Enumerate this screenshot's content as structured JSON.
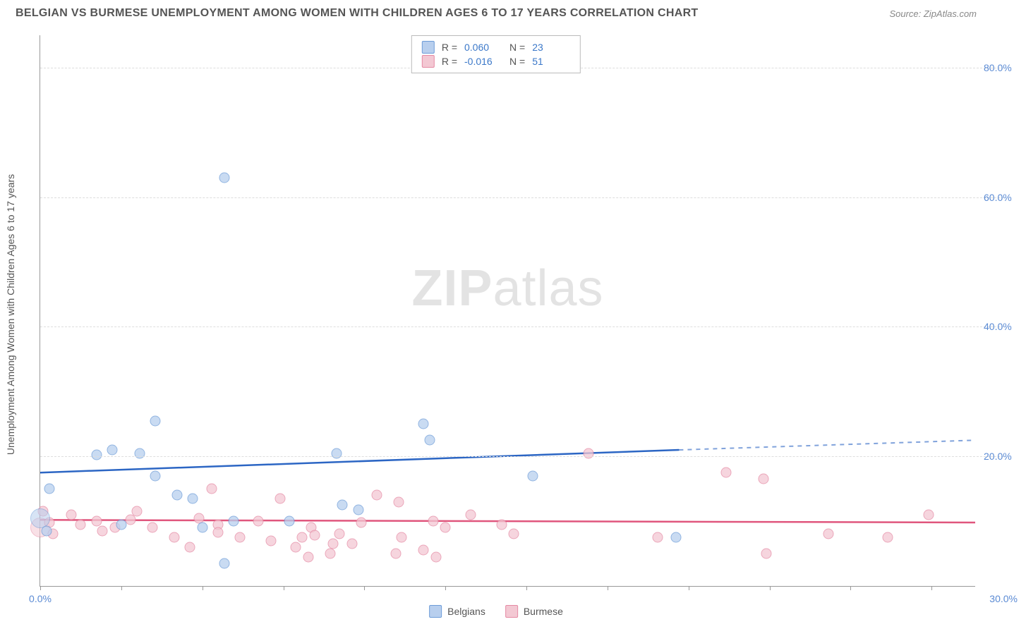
{
  "header": {
    "title": "BELGIAN VS BURMESE UNEMPLOYMENT AMONG WOMEN WITH CHILDREN AGES 6 TO 17 YEARS CORRELATION CHART",
    "source": "Source: ZipAtlas.com"
  },
  "watermark": {
    "part1": "ZIP",
    "part2": "atlas"
  },
  "chart": {
    "type": "scatter_with_trend",
    "y_axis_label": "Unemployment Among Women with Children Ages 6 to 17 years",
    "background_color": "#ffffff",
    "grid_color": "#dddddd",
    "x": {
      "min": 0,
      "max": 30,
      "tick_positions": [
        0,
        2.6,
        5.2,
        7.8,
        10.4,
        13,
        15.6,
        18.2,
        20.8,
        23.4,
        26,
        28.6
      ],
      "labels": {
        "min": "0.0%",
        "max": "30.0%"
      }
    },
    "y": {
      "min": 0,
      "max": 85,
      "ticks": [
        20,
        40,
        60,
        80
      ],
      "labels": [
        "20.0%",
        "40.0%",
        "60.0%",
        "80.0%"
      ]
    },
    "series": [
      {
        "name": "Belgians",
        "fill": "#b8cfee",
        "stroke": "#6d9cd8",
        "trend_stroke": "#2c66c4",
        "stats": {
          "R": "0.060",
          "N": "23"
        },
        "trend": {
          "x1": 0,
          "y1": 17.5,
          "x2": 20.5,
          "y2": 21.0,
          "x2_dash": 30,
          "y2_dash": 22.5
        },
        "points": [
          {
            "x": 0.0,
            "y": 10.5,
            "big": true
          },
          {
            "x": 0.2,
            "y": 8.5
          },
          {
            "x": 0.3,
            "y": 15.0
          },
          {
            "x": 1.8,
            "y": 20.2
          },
          {
            "x": 2.3,
            "y": 21.0
          },
          {
            "x": 2.6,
            "y": 9.5
          },
          {
            "x": 3.2,
            "y": 20.5
          },
          {
            "x": 3.7,
            "y": 25.5
          },
          {
            "x": 3.7,
            "y": 17.0
          },
          {
            "x": 4.4,
            "y": 14.0
          },
          {
            "x": 4.9,
            "y": 13.5
          },
          {
            "x": 5.2,
            "y": 9.0
          },
          {
            "x": 5.9,
            "y": 63.0
          },
          {
            "x": 5.9,
            "y": 3.5
          },
          {
            "x": 6.2,
            "y": 10.0
          },
          {
            "x": 8.0,
            "y": 10.0
          },
          {
            "x": 9.5,
            "y": 20.5
          },
          {
            "x": 9.7,
            "y": 12.5
          },
          {
            "x": 10.2,
            "y": 11.8
          },
          {
            "x": 12.3,
            "y": 25.0
          },
          {
            "x": 12.5,
            "y": 22.5
          },
          {
            "x": 15.8,
            "y": 17.0
          },
          {
            "x": 20.4,
            "y": 7.5
          }
        ]
      },
      {
        "name": "Burmese",
        "fill": "#f3c8d3",
        "stroke": "#e589a3",
        "trend_stroke": "#e0567d",
        "stats": {
          "R": "-0.016",
          "N": "51"
        },
        "trend": {
          "x1": 0,
          "y1": 10.2,
          "x2": 30,
          "y2": 9.8
        },
        "points": [
          {
            "x": 0.0,
            "y": 9.0,
            "big": true
          },
          {
            "x": 0.1,
            "y": 11.5
          },
          {
            "x": 0.3,
            "y": 9.8
          },
          {
            "x": 0.4,
            "y": 8.0
          },
          {
            "x": 1.0,
            "y": 11.0
          },
          {
            "x": 1.3,
            "y": 9.5
          },
          {
            "x": 1.8,
            "y": 10.0
          },
          {
            "x": 2.0,
            "y": 8.5
          },
          {
            "x": 2.4,
            "y": 9.0
          },
          {
            "x": 2.9,
            "y": 10.2
          },
          {
            "x": 3.1,
            "y": 11.5
          },
          {
            "x": 3.6,
            "y": 9.0
          },
          {
            "x": 4.3,
            "y": 7.5
          },
          {
            "x": 4.8,
            "y": 6.0
          },
          {
            "x": 5.1,
            "y": 10.5
          },
          {
            "x": 5.5,
            "y": 15.0
          },
          {
            "x": 5.7,
            "y": 9.5
          },
          {
            "x": 5.7,
            "y": 8.3
          },
          {
            "x": 6.4,
            "y": 7.5
          },
          {
            "x": 7.0,
            "y": 10.0
          },
          {
            "x": 7.4,
            "y": 7.0
          },
          {
            "x": 7.7,
            "y": 13.5
          },
          {
            "x": 8.2,
            "y": 6.0
          },
          {
            "x": 8.4,
            "y": 7.5
          },
          {
            "x": 8.6,
            "y": 4.5
          },
          {
            "x": 8.7,
            "y": 9.0
          },
          {
            "x": 8.8,
            "y": 7.8
          },
          {
            "x": 9.3,
            "y": 5.0
          },
          {
            "x": 9.4,
            "y": 6.5
          },
          {
            "x": 9.6,
            "y": 8.0
          },
          {
            "x": 10.0,
            "y": 6.5
          },
          {
            "x": 10.3,
            "y": 9.8
          },
          {
            "x": 10.8,
            "y": 14.0
          },
          {
            "x": 11.4,
            "y": 5.0
          },
          {
            "x": 11.5,
            "y": 13.0
          },
          {
            "x": 11.6,
            "y": 7.5
          },
          {
            "x": 12.3,
            "y": 5.5
          },
          {
            "x": 12.6,
            "y": 10.0
          },
          {
            "x": 12.7,
            "y": 4.5
          },
          {
            "x": 13.0,
            "y": 9.0
          },
          {
            "x": 13.8,
            "y": 11.0
          },
          {
            "x": 14.8,
            "y": 9.5
          },
          {
            "x": 15.2,
            "y": 8.0
          },
          {
            "x": 17.6,
            "y": 20.5
          },
          {
            "x": 19.8,
            "y": 7.5
          },
          {
            "x": 22.0,
            "y": 17.5
          },
          {
            "x": 23.2,
            "y": 16.5
          },
          {
            "x": 23.3,
            "y": 5.0
          },
          {
            "x": 25.3,
            "y": 8.0
          },
          {
            "x": 27.2,
            "y": 7.5
          },
          {
            "x": 28.5,
            "y": 11.0
          }
        ]
      }
    ]
  },
  "legend": {
    "items": [
      "Belgians",
      "Burmese"
    ]
  }
}
